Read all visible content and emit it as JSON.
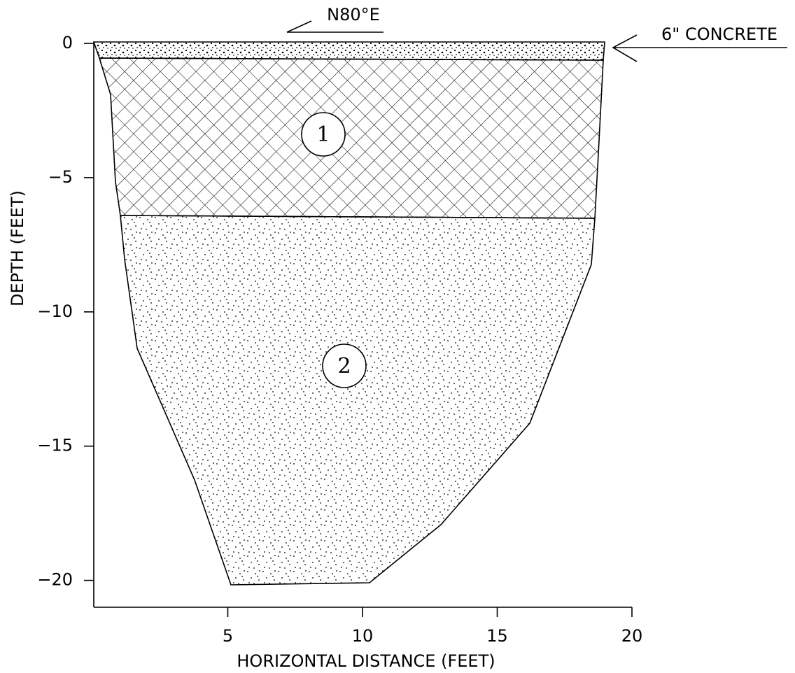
{
  "annotations": {
    "bearing": "N80°E",
    "surface": "6\" CONCRETE"
  },
  "layers": [
    {
      "label": "1"
    },
    {
      "label": "2"
    }
  ],
  "x_axis": {
    "title": "HORIZONTAL DISTANCE (FEET)",
    "lim": [
      0,
      20
    ],
    "ticks": [
      5,
      10,
      15,
      20
    ]
  },
  "y_axis": {
    "title": "DEPTH (FEET)",
    "lim": [
      -21,
      0
    ],
    "ticks": [
      0,
      {
        "value": -5,
        "label": "−5"
      },
      {
        "value": -10,
        "label": "−10"
      },
      {
        "value": -15,
        "label": "−15"
      },
      {
        "value": -20,
        "label": "−20"
      }
    ]
  }
}
